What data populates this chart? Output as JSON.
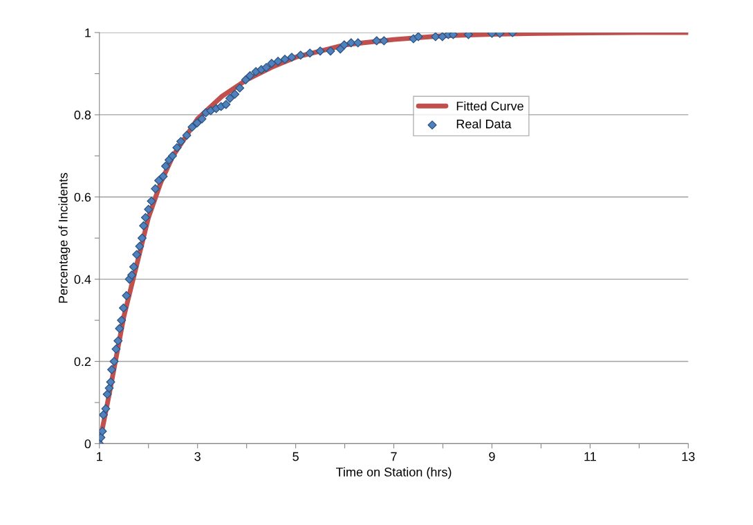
{
  "chart_data": {
    "type": "scatter",
    "xlabel": "Time on Station (hrs)",
    "ylabel": "Percentage of Incidents",
    "xlim": [
      1,
      13
    ],
    "ylim": [
      0,
      1
    ],
    "xticks": [
      1,
      {
        "value": 2,
        "label": null
      },
      3,
      {
        "value": 4,
        "label": null
      },
      5,
      {
        "value": 6,
        "label": null
      },
      7,
      {
        "value": 8,
        "label": null
      },
      9,
      {
        "value": 10,
        "label": null
      },
      11,
      {
        "value": 12,
        "label": null
      },
      13
    ],
    "yticks": [
      0,
      {
        "value": 0.1,
        "label": null
      },
      0.2,
      {
        "value": 0.3,
        "label": null
      },
      0.4,
      {
        "value": 0.5,
        "label": null
      },
      0.6,
      {
        "value": 0.7,
        "label": null
      },
      0.8,
      {
        "value": 0.9,
        "label": null
      },
      1
    ],
    "grid": "y",
    "legend": "top right",
    "series": [
      {
        "name": "Fitted Curve",
        "type": "line",
        "color": "#c0504d",
        "marker": "none",
        "line_style": "solid",
        "x": [
          1,
          1.2,
          1.5,
          1.75,
          2,
          2.25,
          2.5,
          3,
          3.5,
          4,
          4.5,
          5,
          5.5,
          6,
          7,
          8,
          9,
          10,
          11,
          12,
          13
        ],
        "values": [
          0,
          0.12,
          0.31,
          0.43,
          0.55,
          0.635,
          0.7,
          0.79,
          0.845,
          0.885,
          0.915,
          0.94,
          0.955,
          0.97,
          0.983,
          0.992,
          0.996,
          0.998,
          0.999,
          1.0,
          1.0
        ]
      },
      {
        "name": "Real Data",
        "color": "#4f81bd",
        "marker": "diamond",
        "x": [
          1.0,
          1.03,
          1.06,
          1.08,
          1.13,
          1.16,
          1.2,
          1.23,
          1.25,
          1.3,
          1.34,
          1.38,
          1.41,
          1.45,
          1.49,
          1.55,
          1.61,
          1.66,
          1.7,
          1.76,
          1.82,
          1.87,
          1.9,
          1.94,
          2.0,
          2.06,
          2.14,
          2.21,
          2.3,
          2.35,
          2.42,
          2.49,
          2.58,
          2.66,
          2.78,
          2.89,
          2.99,
          3.09,
          3.17,
          3.27,
          3.38,
          3.48,
          3.58,
          3.66,
          3.76,
          3.86,
          3.98,
          4.07,
          4.19,
          4.3,
          4.4,
          4.51,
          4.64,
          4.78,
          4.92,
          5.1,
          5.29,
          5.5,
          5.71,
          5.91,
          5.99,
          6.13,
          6.27,
          6.65,
          6.8,
          7.4,
          7.5,
          7.85,
          7.99,
          8.11,
          8.21,
          8.52,
          9.0,
          9.16,
          9.42
        ],
        "values": [
          0,
          0.015,
          0.03,
          0.07,
          0.085,
          0.12,
          0.135,
          0.15,
          0.18,
          0.2,
          0.23,
          0.25,
          0.28,
          0.3,
          0.33,
          0.36,
          0.4,
          0.41,
          0.43,
          0.46,
          0.48,
          0.5,
          0.53,
          0.55,
          0.57,
          0.59,
          0.62,
          0.64,
          0.65,
          0.675,
          0.69,
          0.7,
          0.72,
          0.735,
          0.75,
          0.77,
          0.78,
          0.79,
          0.805,
          0.81,
          0.815,
          0.82,
          0.825,
          0.84,
          0.85,
          0.865,
          0.885,
          0.895,
          0.905,
          0.91,
          0.915,
          0.925,
          0.93,
          0.935,
          0.94,
          0.945,
          0.95,
          0.955,
          0.955,
          0.96,
          0.97,
          0.975,
          0.975,
          0.98,
          0.98,
          0.985,
          0.99,
          0.99,
          0.99,
          0.995,
          0.995,
          0.995,
          0.998,
          0.998,
          1.0
        ]
      }
    ]
  }
}
